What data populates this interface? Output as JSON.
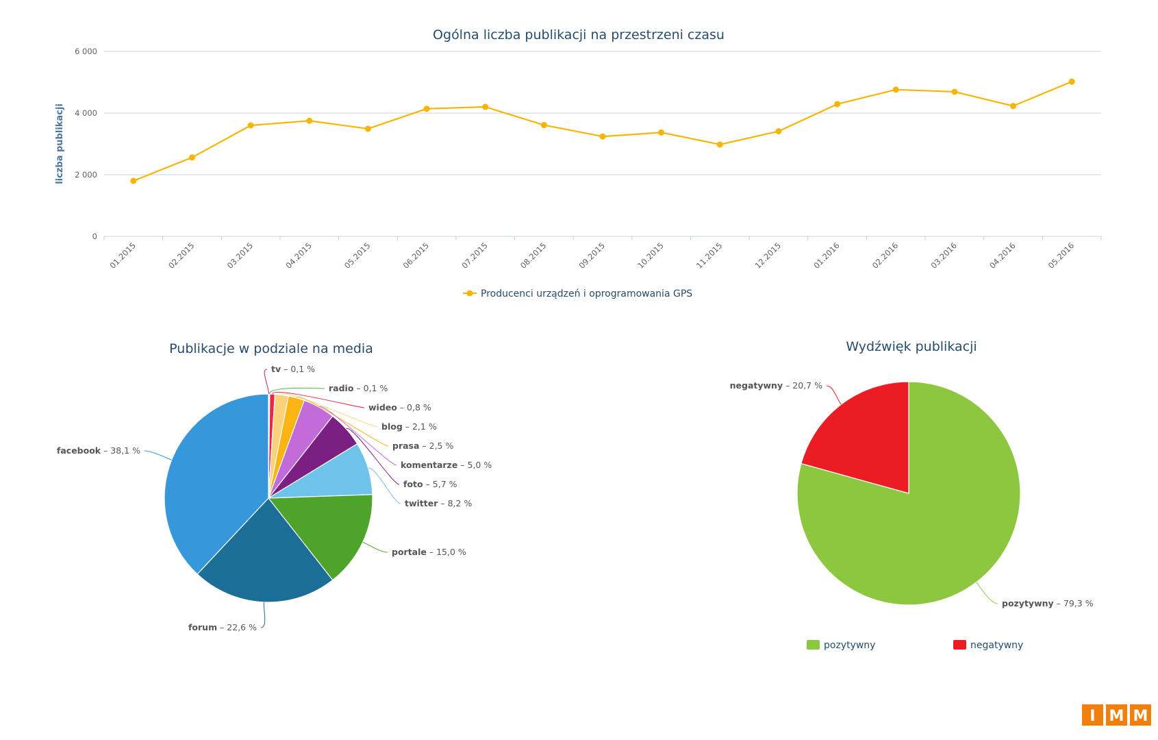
{
  "chart_data": [
    {
      "type": "line",
      "title": "Ogólna liczba publikacji na przestrzeni czasu",
      "ylabel": "liczba publikacji",
      "xlabel": "",
      "ylim": [
        0,
        6000
      ],
      "yticks": [
        "0",
        "2 000",
        "4 000",
        "6 000"
      ],
      "ytick_values": [
        0,
        2000,
        4000,
        6000
      ],
      "grid": true,
      "categories": [
        "01.2015",
        "02.2015",
        "03.2015",
        "04.2015",
        "05.2015",
        "06.2015",
        "07.2015",
        "08.2015",
        "09.2015",
        "10.2015",
        "11.2015",
        "12.2015",
        "01.2016",
        "02.2016",
        "03.2016",
        "04.2016",
        "05.2016"
      ],
      "series": [
        {
          "name": "Producenci urządzeń i oprogramowania GPS",
          "color": "#f7b500",
          "values": [
            1800,
            2560,
            3600,
            3750,
            3490,
            4140,
            4200,
            3610,
            3240,
            3370,
            2980,
            3410,
            4290,
            4760,
            4690,
            4230,
            5020
          ]
        }
      ],
      "legend_position": "bottom-center"
    },
    {
      "type": "pie",
      "title": "Publikacje w podziale na media",
      "slices": [
        {
          "name": "tv",
          "value": 0.1,
          "label": "0,1 %",
          "color": "#c9246a"
        },
        {
          "name": "radio",
          "value": 0.1,
          "label": "0,1 %",
          "color": "#4fb83c"
        },
        {
          "name": "wideo",
          "value": 0.8,
          "label": "0,8 %",
          "color": "#e8254c"
        },
        {
          "name": "blog",
          "value": 2.1,
          "label": "2,1 %",
          "color": "#fbd27c"
        },
        {
          "name": "prasa",
          "value": 2.5,
          "label": "2,5 %",
          "color": "#fbb412"
        },
        {
          "name": "komentarze",
          "value": 5.0,
          "label": "5,0 %",
          "color": "#c36bd8"
        },
        {
          "name": "foto",
          "value": 5.7,
          "label": "5,7 %",
          "color": "#7b1f82"
        },
        {
          "name": "twitter",
          "value": 8.2,
          "label": "8,2 %",
          "color": "#6ec3ea"
        },
        {
          "name": "portale",
          "value": 15.0,
          "label": "15,0 %",
          "color": "#4ea32a"
        },
        {
          "name": "forum",
          "value": 22.6,
          "label": "22,6 %",
          "color": "#1b6f97"
        },
        {
          "name": "facebook",
          "value": 38.1,
          "label": "38,1 %",
          "color": "#3698da"
        }
      ]
    },
    {
      "type": "pie",
      "title": "Wydźwięk publikacji",
      "slices": [
        {
          "name": "pozytywny",
          "value": 79.3,
          "label": "79,3 %",
          "color": "#8dc63f"
        },
        {
          "name": "negatywny",
          "value": 20.7,
          "label": "20,7 %",
          "color": "#ec1c24"
        }
      ],
      "legend": [
        "pozytywny",
        "negatywny"
      ],
      "legend_position": "bottom"
    }
  ],
  "logo": {
    "letters": [
      "I",
      "M",
      "M"
    ],
    "color": "#f07f0e"
  }
}
